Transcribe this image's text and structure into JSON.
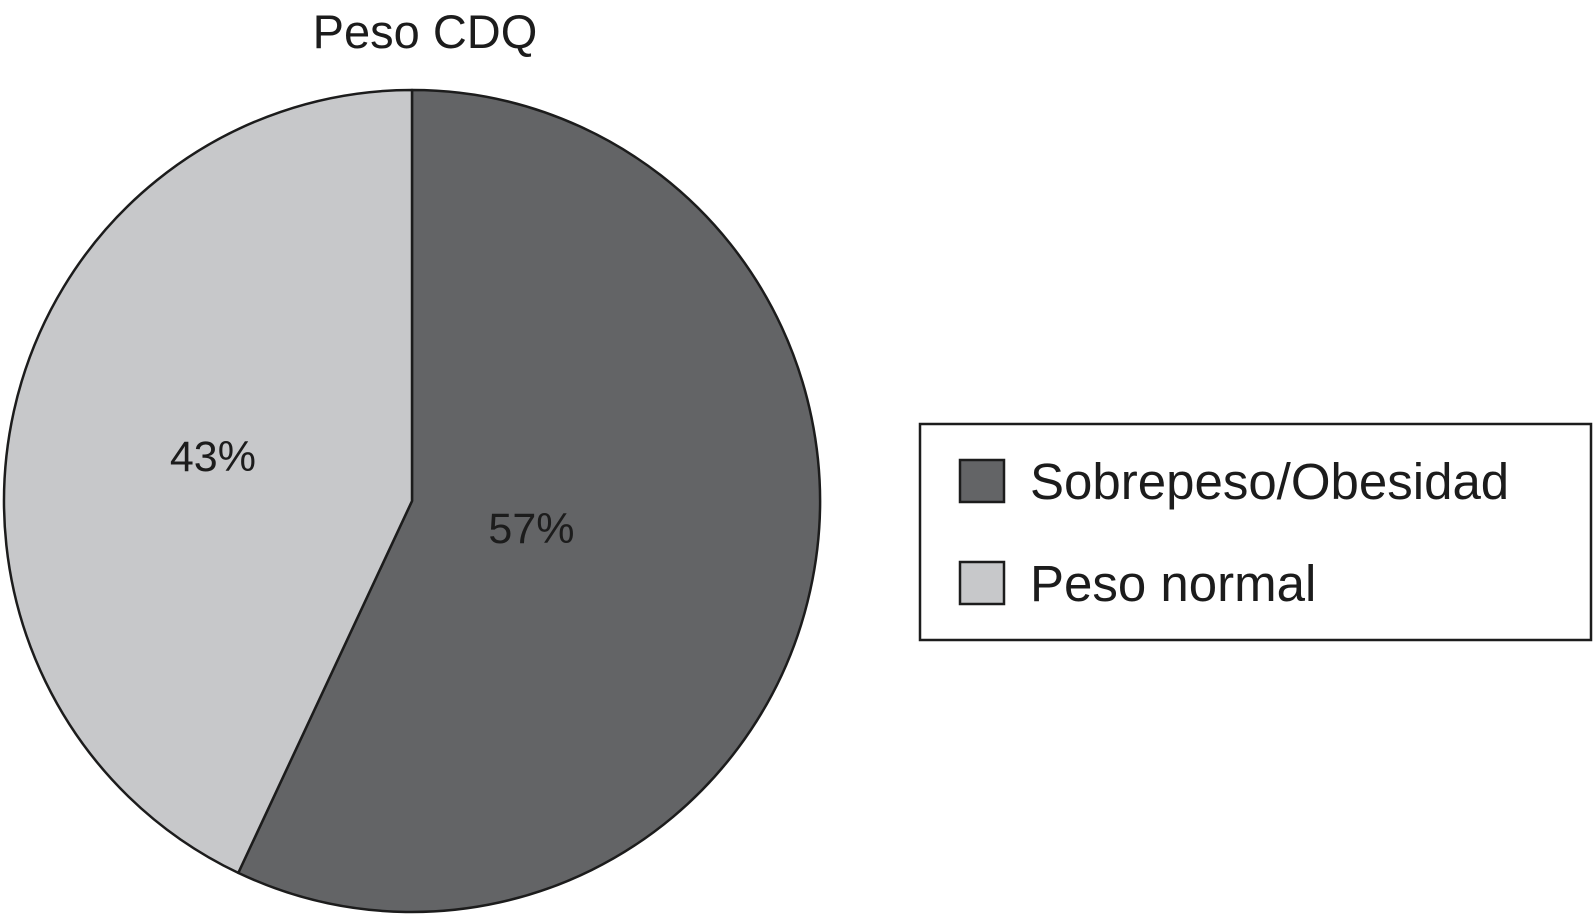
{
  "chart_data": {
    "type": "pie",
    "title": "Peso CDQ",
    "categories": [
      "Sobrepeso/Obesidad",
      "Peso normal"
    ],
    "values": [
      57,
      43
    ],
    "labels": [
      "57%",
      "43%"
    ],
    "colors": [
      "#636466",
      "#c7c8ca"
    ],
    "start_angle": "12 o'clock",
    "direction": "clockwise",
    "legend_position": "right"
  }
}
